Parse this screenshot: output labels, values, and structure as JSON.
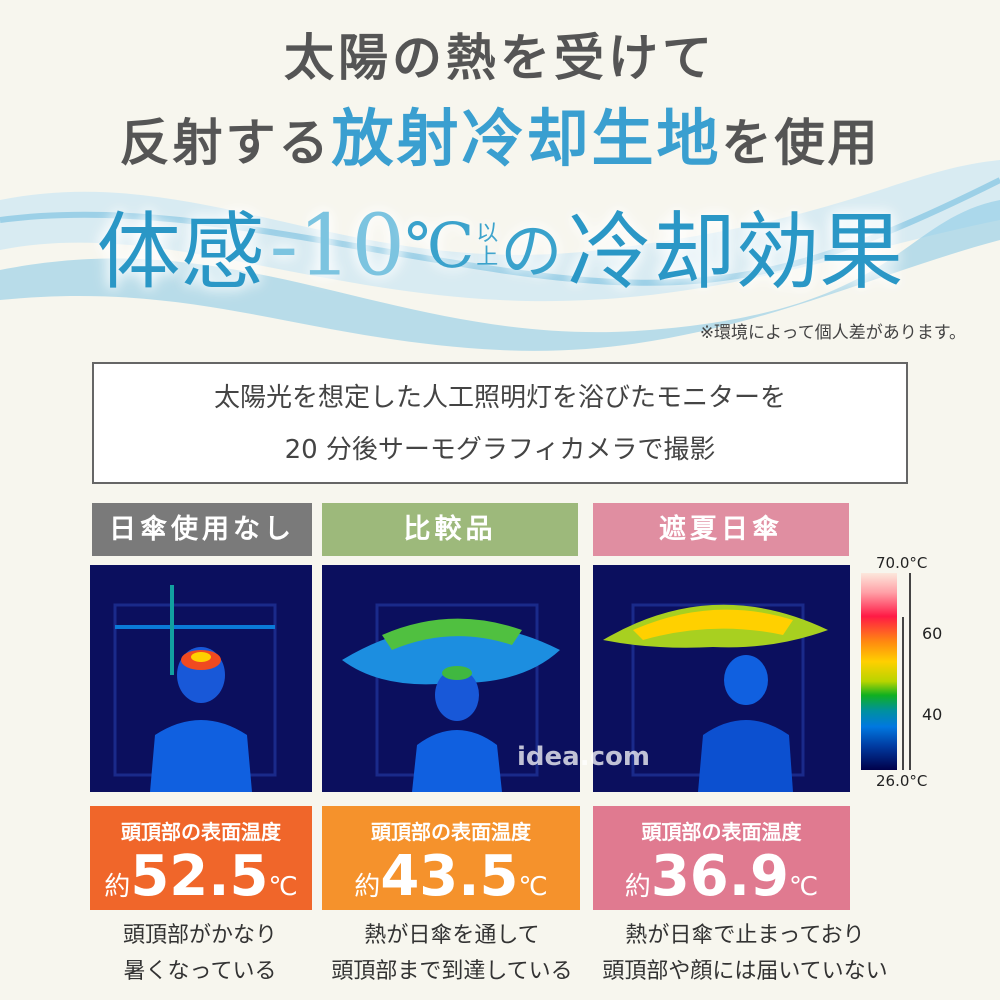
{
  "headline": {
    "line1": "太陽の熱を受けて",
    "line2_pre": "反射する",
    "line2_highlight": "放射冷却生地",
    "line2_post": "を使用"
  },
  "banner": {
    "p1": "体感",
    "p2": "-10",
    "p3": "℃",
    "p4a": "以",
    "p4b": "上",
    "p5": "の",
    "p6": "冷却効果",
    "note": "※環境によって個人差があります。"
  },
  "condition": {
    "line1": "太陽光を想定した人工照明灯を浴びたモニターを",
    "line2": "20 分後サーモグラフィカメラで撮影"
  },
  "watermark": "idea.com",
  "colorbar": {
    "max": "70.0°C",
    "min": "26.0°C",
    "tick_60": "60",
    "tick_40": "40"
  },
  "panels": [
    {
      "label": "日傘使用なし",
      "label_color": "#7a7a7a",
      "temp_label": "頭頂部の表面温度",
      "prefix": "約",
      "value": "52.5",
      "unit": "℃",
      "temp_color": "#f0662a",
      "caption1": "頭頂部がかなり",
      "caption2": "暑くなっている"
    },
    {
      "label": "比較品",
      "label_color": "#9db97b",
      "temp_label": "頭頂部の表面温度",
      "prefix": "約",
      "value": "43.5",
      "unit": "℃",
      "temp_color": "#f5922c",
      "caption1": "熱が日傘を通して",
      "caption2": "頭頂部まで到達している"
    },
    {
      "label": "遮夏日傘",
      "label_color": "#e08ea1",
      "temp_label": "頭頂部の表面温度",
      "prefix": "約",
      "value": "36.9",
      "unit": "℃",
      "temp_color": "#e07a90",
      "caption1": "熱が日傘で止まっており",
      "caption2": "頭頂部や顔には届いていない"
    }
  ]
}
